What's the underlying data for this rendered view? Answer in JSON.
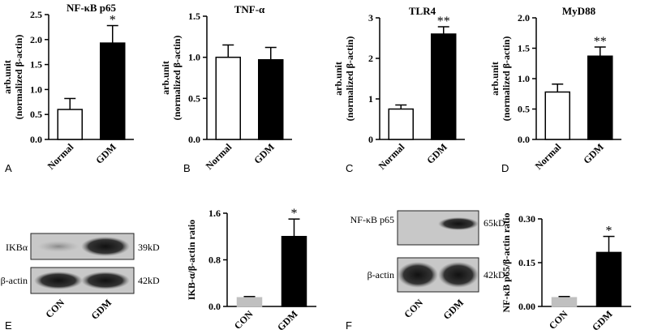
{
  "chart_data": [
    {
      "type": "bar",
      "panel": "A",
      "title": "NF-κB p65",
      "ylabel": [
        "arb.unit",
        "(normalized β-actin)"
      ],
      "categories": [
        "Normal",
        "GDM"
      ],
      "values": [
        0.6,
        1.93
      ],
      "errors": [
        0.22,
        0.35
      ],
      "colors": [
        "#ffffff",
        "#000000"
      ],
      "annotations": [
        null,
        "*"
      ],
      "ylim": [
        0,
        2.5
      ],
      "yticks": [
        {
          "value": 0,
          "label": "0.0"
        },
        {
          "value": 0.5,
          "label": "0.5"
        },
        {
          "value": 1,
          "label": "1.0"
        },
        {
          "value": 1.5,
          "label": "1.5"
        },
        {
          "value": 2,
          "label": "2.0"
        },
        {
          "value": 2.5,
          "label": "2.5"
        }
      ]
    },
    {
      "type": "bar",
      "panel": "B",
      "title": "TNF-α",
      "ylabel": [
        "arb.unit",
        "(normalized β-actin)"
      ],
      "categories": [
        "Normal",
        "GDM"
      ],
      "values": [
        1.0,
        0.97
      ],
      "errors": [
        0.15,
        0.15
      ],
      "colors": [
        "#ffffff",
        "#000000"
      ],
      "annotations": [
        null,
        null
      ],
      "ylim": [
        0,
        1.5
      ],
      "yticks": [
        {
          "value": 0,
          "label": "0.0"
        },
        {
          "value": 0.5,
          "label": "0.5"
        },
        {
          "value": 1,
          "label": "1.0"
        },
        1.5
      ]
    },
    {
      "type": "bar",
      "panel": "C",
      "title": "TLR4",
      "ylabel": [
        "arb.unit",
        "(normalized β-actin)"
      ],
      "categories": [
        "Normal",
        "GDM"
      ],
      "values": [
        0.75,
        2.6
      ],
      "errors": [
        0.1,
        0.18
      ],
      "colors": [
        "#ffffff",
        "#000000"
      ],
      "annotations": [
        null,
        "**"
      ],
      "ylim": [
        0,
        3
      ],
      "yticks": [
        0,
        1,
        2,
        3
      ]
    },
    {
      "type": "bar",
      "panel": "D",
      "title": "MyD88",
      "ylabel": [
        "arb.unit",
        "(normalized β-actin)"
      ],
      "categories": [
        "Normal",
        "GDM"
      ],
      "values": [
        0.78,
        1.37
      ],
      "errors": [
        0.13,
        0.15
      ],
      "colors": [
        "#ffffff",
        "#000000"
      ],
      "annotations": [
        null,
        "**"
      ],
      "ylim": [
        0,
        2
      ],
      "yticks": [
        {
          "value": 0,
          "label": "0.0"
        },
        {
          "value": 0.5,
          "label": "0.5"
        },
        {
          "value": 1,
          "label": "1.0"
        },
        1.5,
        {
          "value": 2,
          "label": "2.0"
        }
      ]
    },
    {
      "type": "bar",
      "ylabel": [
        "IKB-α/β-actin ratio"
      ],
      "categories": [
        "CON",
        "GDM"
      ],
      "values": [
        0.15,
        1.2
      ],
      "errors": [
        0.02,
        0.3
      ],
      "colors": [
        "#c0c0c0",
        "#000000"
      ],
      "annotations": [
        null,
        "*"
      ],
      "ylim": [
        0,
        1.6
      ],
      "yticks": [
        {
          "value": 0,
          "label": "0.0"
        },
        0.8,
        1.6
      ]
    },
    {
      "type": "bar",
      "ylabel": [
        "NF-κB p65/β-actin ratio"
      ],
      "categories": [
        "CON",
        "GDM"
      ],
      "values": [
        0.03,
        0.185
      ],
      "errors": [
        0.004,
        0.055
      ],
      "colors": [
        "#c0c0c0",
        "#000000"
      ],
      "annotations": [
        null,
        "*"
      ],
      "ylim": [
        0,
        0.3
      ],
      "yticks": [
        {
          "value": 0,
          "label": "0.00"
        },
        0.15,
        {
          "value": 0.3,
          "label": "0.30"
        }
      ]
    }
  ],
  "blots": [
    {
      "panel": "E",
      "rows": [
        {
          "label": "IKBα",
          "size": "39kD"
        },
        {
          "label": "β-actin",
          "size": "42kD"
        }
      ],
      "lanes": [
        "CON",
        "GDM"
      ]
    },
    {
      "panel": "F",
      "rows": [
        {
          "label": "NF-κB p65",
          "size": "65kD"
        },
        {
          "label": "β-actin",
          "size": "42kD"
        }
      ],
      "lanes": [
        "CON",
        "GDM"
      ]
    }
  ]
}
